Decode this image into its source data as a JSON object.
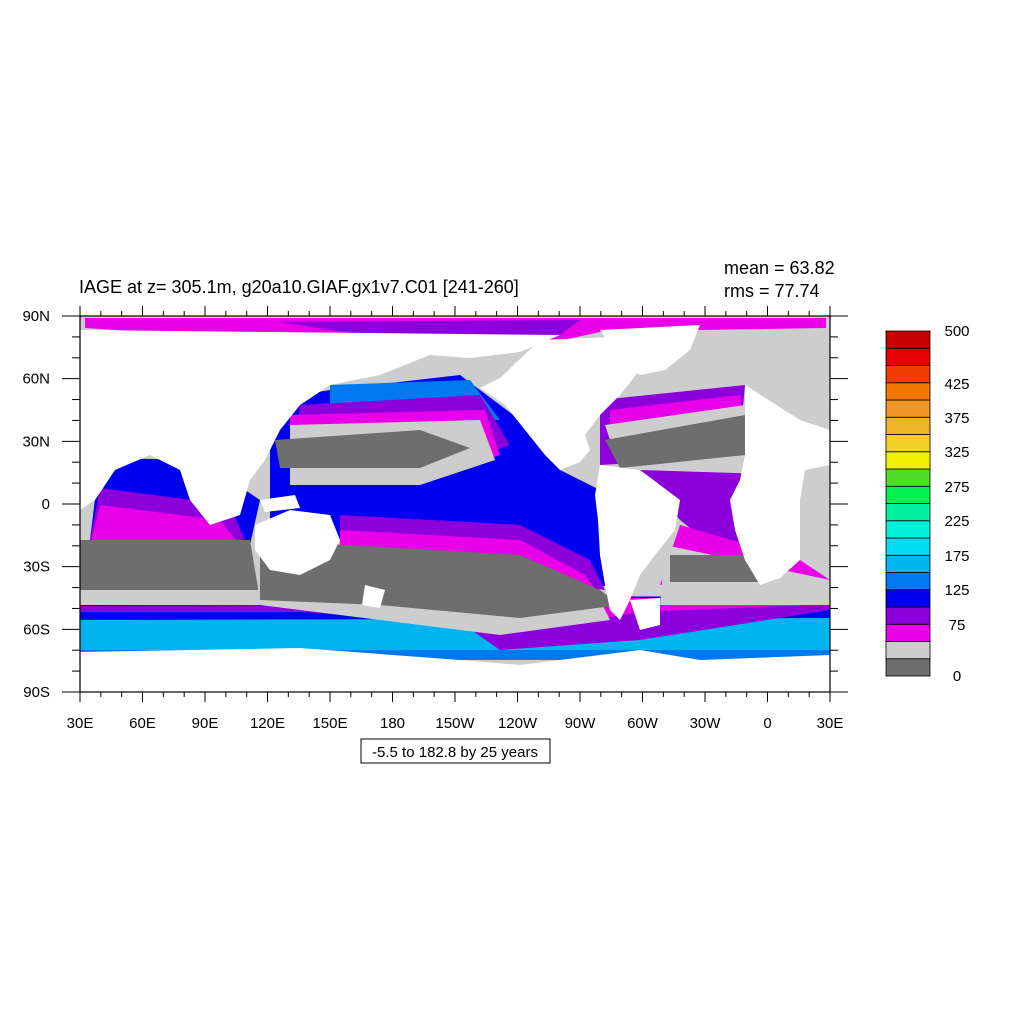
{
  "title": "IAGE at z= 305.1m, g20a10.GIAF.gx1v7.C01 [241-260]",
  "stats": {
    "mean": "mean = 63.82",
    "rms": "rms = 77.74"
  },
  "axes": {
    "x_ticks": [
      "30E",
      "60E",
      "90E",
      "120E",
      "150E",
      "180",
      "150W",
      "120W",
      "90W",
      "60W",
      "30W",
      "0",
      "30E"
    ],
    "y_ticks": [
      "90N",
      "60N",
      "30N",
      "0",
      "30S",
      "60S",
      "90S"
    ]
  },
  "info_box": "-5.5 to 182.8 by 25 years",
  "colorbar": {
    "colors": [
      "#6e6e6e",
      "#cdcdcd",
      "#e800e8",
      "#8c00dc",
      "#0000f0",
      "#0078f0",
      "#00b4f0",
      "#00dcf0",
      "#00f0dc",
      "#00f0a0",
      "#00f050",
      "#50dc28",
      "#f0f000",
      "#f0d228",
      "#f0b428",
      "#f09628",
      "#f07800",
      "#f03c00",
      "#e60000",
      "#c80000"
    ],
    "labels": [
      "0",
      "75",
      "125",
      "175",
      "225",
      "275",
      "325",
      "375",
      "425",
      "500"
    ]
  },
  "land_color": "#ffffff"
}
